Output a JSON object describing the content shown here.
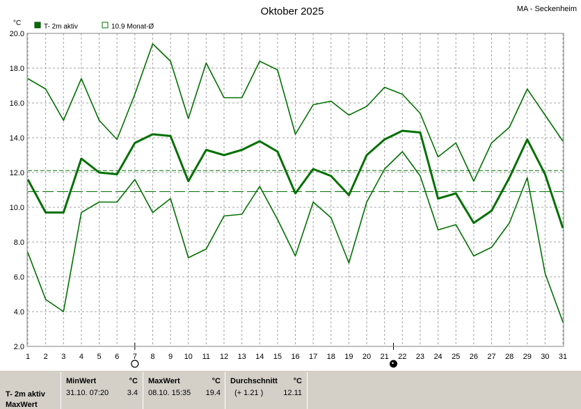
{
  "location": "MA - Seckenheim",
  "chart_data": {
    "type": "line",
    "title": "Oktober 2025",
    "ylabel": "°C",
    "xlabel": "",
    "ylim": [
      2.0,
      20.0
    ],
    "yticks": [
      "2.0",
      "4.0",
      "6.0",
      "8.0",
      "10.0",
      "12.0",
      "14.0",
      "16.0",
      "18.0",
      "20.0"
    ],
    "x": [
      1,
      2,
      3,
      4,
      5,
      6,
      7,
      8,
      9,
      10,
      11,
      12,
      13,
      14,
      15,
      16,
      17,
      18,
      19,
      20,
      21,
      22,
      23,
      24,
      25,
      26,
      27,
      28,
      29,
      30,
      31
    ],
    "grid": true,
    "legend_position": "top-left",
    "series": [
      {
        "role": "max",
        "color": "#007000",
        "values": [
          17.4,
          16.8,
          15.0,
          17.4,
          15.0,
          13.9,
          16.5,
          19.4,
          18.4,
          15.1,
          18.3,
          16.3,
          16.3,
          18.4,
          17.9,
          14.2,
          15.9,
          16.1,
          15.3,
          15.8,
          16.9,
          16.5,
          15.4,
          12.9,
          13.7,
          11.5,
          13.7,
          14.6,
          16.8,
          15.3,
          13.8
        ]
      },
      {
        "role": "mean",
        "name": "T- 2m aktiv",
        "color": "#007000",
        "values": [
          11.6,
          9.7,
          9.7,
          12.8,
          12.0,
          11.9,
          13.7,
          14.2,
          14.1,
          11.5,
          13.3,
          13.0,
          13.3,
          13.8,
          13.2,
          10.8,
          12.2,
          11.8,
          10.7,
          13.0,
          13.9,
          14.4,
          14.3,
          10.5,
          10.8,
          9.1,
          9.8,
          11.7,
          13.9,
          11.9,
          8.8
        ]
      },
      {
        "role": "min",
        "color": "#007000",
        "values": [
          7.4,
          4.7,
          4.0,
          9.7,
          10.3,
          10.3,
          11.6,
          9.7,
          10.5,
          7.1,
          7.6,
          9.5,
          9.6,
          11.2,
          9.3,
          7.2,
          10.3,
          9.4,
          6.8,
          10.3,
          12.2,
          13.2,
          11.8,
          8.7,
          9.0,
          7.2,
          7.7,
          9.1,
          11.7,
          6.2,
          3.4
        ]
      }
    ],
    "reference_lines": [
      {
        "name": "10.9 Monat-Ø",
        "value": 10.9,
        "color": "#007000"
      },
      {
        "value": 12.11,
        "color": "#007000"
      }
    ],
    "moon_phases": [
      {
        "day": 7,
        "phase": "full-moon"
      },
      {
        "day": 21.5,
        "phase": "new-moon"
      }
    ]
  },
  "stats": {
    "row1_label": "T- 2m aktiv",
    "row2_label": "MaxWert",
    "min": {
      "header": "MinWert",
      "unit": "°C",
      "datetime": "31.10.  07:20",
      "value": "3.4"
    },
    "max": {
      "header": "MaxWert",
      "unit": "°C",
      "datetime": "08.10.  15:35",
      "value": "19.4"
    },
    "avg": {
      "header": "Durchschnitt",
      "unit": "°C",
      "delta": "(+ 1.21 )",
      "value": "12.11"
    }
  }
}
